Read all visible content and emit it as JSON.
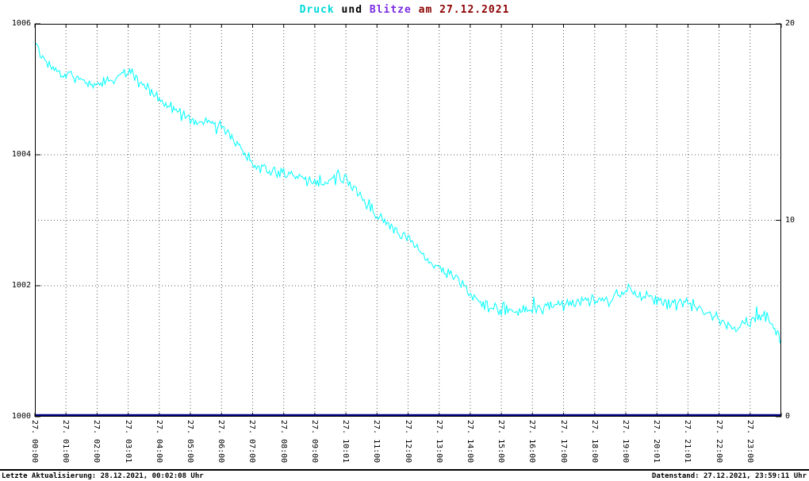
{
  "title": {
    "druck": "Druck",
    "und": " und ",
    "blitze": "Blitze",
    "rest": " am 27.12.2021"
  },
  "colors": {
    "druck_line": "#00ffff",
    "blitze_line": "#000080",
    "title_druck": "#00d8d8",
    "title_blitze": "#7a2be2",
    "title_date": "#8b0000",
    "grid": "#5a5a5a",
    "axis": "#000000"
  },
  "footer": {
    "left": "Letzte Aktualisierung: 28.12.2021, 00:02:08 Uhr",
    "right": "Datenstand: 27.12.2021, 23:59:11 Uhr"
  },
  "chart_data": {
    "type": "line",
    "title": "Druck und Blitze am 27.12.2021",
    "x_axis": {
      "range_hours": [
        0,
        24
      ],
      "ticks": [
        "27. 00:00",
        "27. 01:00",
        "27. 02:00",
        "27. 03:01",
        "27. 04:00",
        "27. 05:00",
        "27. 06:00",
        "27. 07:00",
        "27. 08:00",
        "27. 09:00",
        "27. 10:01",
        "27. 11:00",
        "27. 12:00",
        "27. 13:00",
        "27. 14:00",
        "27. 15:00",
        "27. 16:00",
        "27. 17:00",
        "27. 18:00",
        "27. 19:00",
        "27. 20:01",
        "27. 21:01",
        "27. 22:00",
        "27. 23:00"
      ]
    },
    "y_left": {
      "name": "Druck",
      "range": [
        1000,
        1006
      ],
      "ticks": [
        1000,
        1002,
        1004,
        1006
      ]
    },
    "y_right": {
      "name": "Blitze",
      "range": [
        0,
        20
      ],
      "ticks": [
        0,
        10,
        20
      ]
    },
    "gridlines": {
      "left_values": [
        1002,
        1004
      ],
      "right_values": [
        10
      ]
    },
    "series": [
      {
        "name": "Druck",
        "axis": "left",
        "color": "#00ffff",
        "x_start_hours": 0,
        "x_step_hours": 0.5,
        "values": [
          1005.65,
          1005.35,
          1005.25,
          1005.15,
          1005.05,
          1005.15,
          1005.3,
          1005.05,
          1004.85,
          1004.7,
          1004.55,
          1004.5,
          1004.45,
          1004.15,
          1003.9,
          1003.75,
          1003.7,
          1003.65,
          1003.55,
          1003.6,
          1003.65,
          1003.35,
          1003.05,
          1002.85,
          1002.7,
          1002.45,
          1002.25,
          1002.15,
          1001.9,
          1001.7,
          1001.65,
          1001.6,
          1001.65,
          1001.7,
          1001.7,
          1001.75,
          1001.8,
          1001.75,
          1001.95,
          1001.85,
          1001.8,
          1001.7,
          1001.8,
          1001.6,
          1001.5,
          1001.35,
          1001.45,
          1001.55,
          1001.15
        ]
      },
      {
        "name": "Blitze",
        "axis": "right",
        "color": "#000080",
        "constant_value": 0
      }
    ]
  }
}
